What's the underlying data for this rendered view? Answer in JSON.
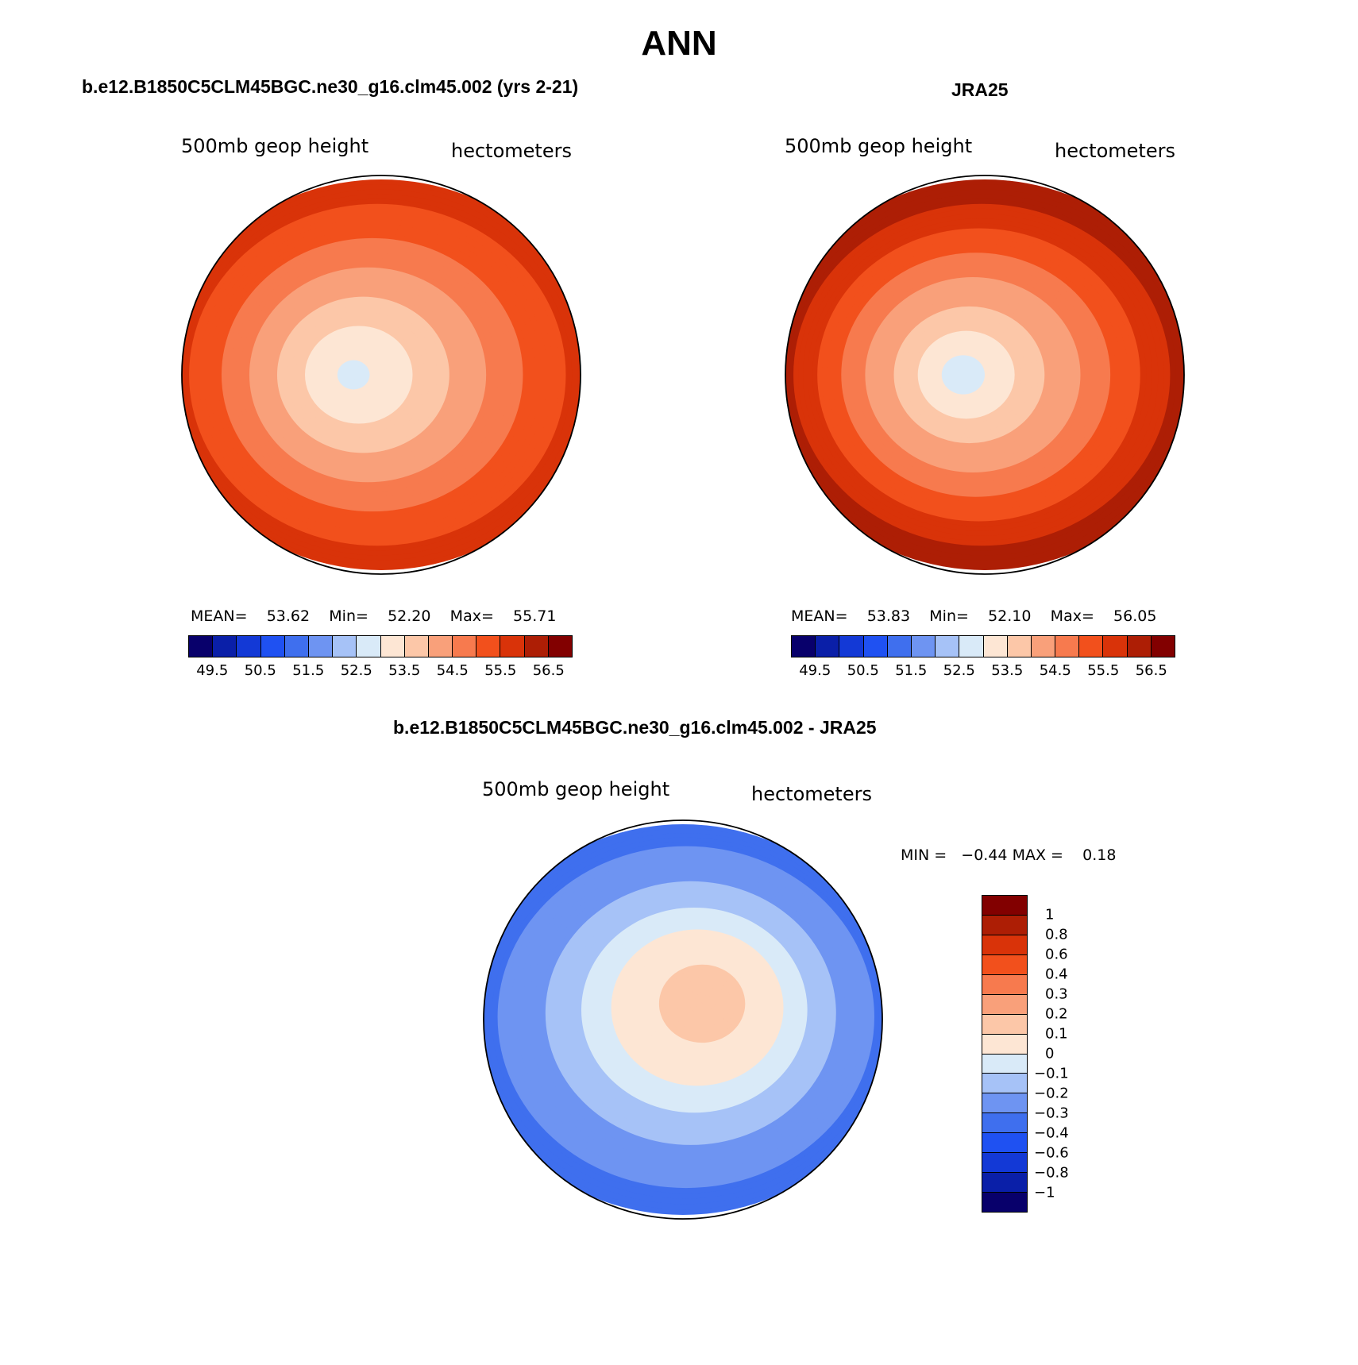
{
  "title": "ANN",
  "panels": [
    {
      "title": "b.e12.B1850C5CLM45BGC.ne30_g16.clm45.002 (yrs 2-21)",
      "left_label": "500mb geop height",
      "right_label": "hectometers",
      "stats": {
        "mean_label": "MEAN=",
        "mean": "53.62",
        "min_label": "Min=",
        "min": "52.20",
        "max_label": "Max=",
        "max": "55.71"
      },
      "field": {
        "pole": 52.7,
        "eq": 55.9,
        "center_dx": -0.15,
        "center_dy": 0.0
      }
    },
    {
      "title": "JRA25",
      "left_label": "500mb geop height",
      "right_label": "hectometers",
      "stats": {
        "mean_label": "MEAN=",
        "mean": "53.83",
        "min_label": "Min=",
        "min": "52.10",
        "max_label": "Max=",
        "max": "56.05"
      },
      "field": {
        "pole": 52.6,
        "eq": 56.4,
        "center_dx": -0.12,
        "center_dy": 0.0
      }
    }
  ],
  "colorbar_abs": {
    "colors": [
      "#08006b",
      "#0a1fa8",
      "#1339d6",
      "#1f51f2",
      "#3f6fee",
      "#6e94f2",
      "#a6c2f7",
      "#d9eaf8",
      "#fde6d4",
      "#fcc7a8",
      "#f9a07a",
      "#f77a4e",
      "#f2501c",
      "#d93309",
      "#ad1e05",
      "#820000"
    ],
    "levels": [
      49.5,
      50,
      50.5,
      51,
      51.5,
      52,
      52.5,
      53,
      53.5,
      54,
      54.5,
      55,
      55.5,
      56,
      56.5
    ],
    "tick_labels": [
      "49.5",
      "50.5",
      "51.5",
      "52.5",
      "53.5",
      "54.5",
      "55.5",
      "56.5"
    ]
  },
  "diff": {
    "title": "b.e12.B1850C5CLM45BGC.ne30_g16.clm45.002 - JRA25",
    "left_label": "500mb geop height",
    "right_label": "hectometers",
    "stats": {
      "min_label": "MIN =",
      "min": "−0.44",
      "max_label": "MAX =",
      "max": "0.18"
    },
    "colors": [
      "#820000",
      "#ad1e05",
      "#d93309",
      "#f2501c",
      "#f77a4e",
      "#f9a07a",
      "#fcc7a8",
      "#fde6d4",
      "#d9eaf8",
      "#a6c2f7",
      "#6e94f2",
      "#3f6fee",
      "#1f51f2",
      "#1339d6",
      "#0a1fa8",
      "#08006b"
    ],
    "tick_labels": [
      "1",
      "0.8",
      "0.6",
      "0.4",
      "0.3",
      "0.2",
      "0.1",
      "0",
      "−0.1",
      "−0.2",
      "−0.3",
      "−0.4",
      "−0.6",
      "−0.8",
      "−1"
    ]
  },
  "colors": {
    "land_outline": "#000000",
    "circle_outline": "#000000"
  }
}
